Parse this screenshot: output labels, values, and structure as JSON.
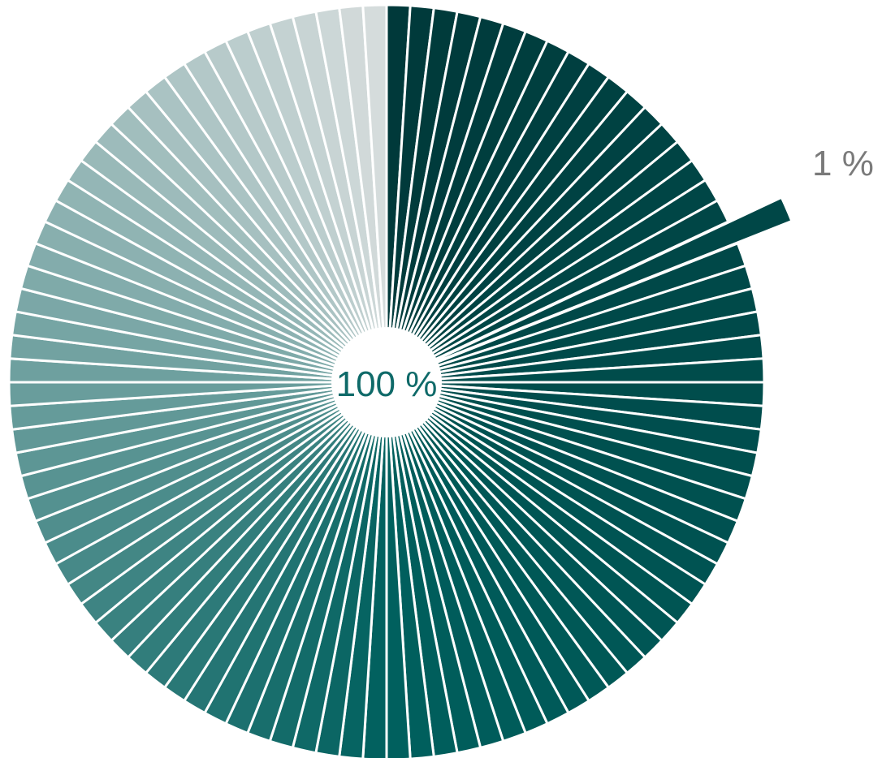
{
  "chart_data": {
    "type": "pie",
    "slice_count": 100,
    "slice_value": 1,
    "center_label": "100 %",
    "exploded_slice_label": "1 %",
    "exploded_slice_index": 18,
    "colors": {
      "start": "#00393a",
      "mid": "#00605e",
      "end": "#d5dcdc",
      "center_text": "#0f6a69",
      "label_text": "#7a7a7a",
      "separator": "#ffffff"
    }
  }
}
